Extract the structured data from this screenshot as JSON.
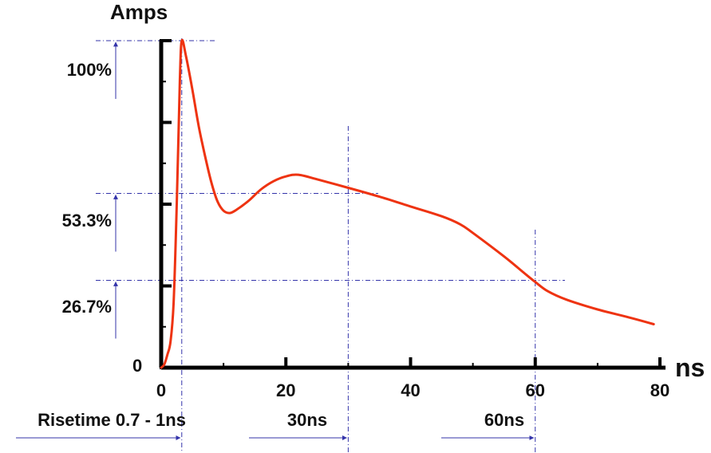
{
  "chart_data": {
    "type": "line",
    "title": "",
    "ylabel": "Amps",
    "xlabel": "ns",
    "xlim": [
      0,
      80
    ],
    "ylim": [
      0,
      100
    ],
    "x_ticks": [
      0,
      20,
      40,
      60,
      80
    ],
    "x_tick_labels": [
      "0",
      "20",
      "40",
      "60",
      "80"
    ],
    "y_ticks": [
      0,
      25,
      50,
      75,
      100
    ],
    "y_zero_label": "0",
    "y_levels": [
      {
        "value": 100,
        "label": "100%"
      },
      {
        "value": 53.3,
        "label": "53.3%"
      },
      {
        "value": 26.7,
        "label": "26.7%"
      }
    ],
    "time_markers": [
      {
        "x": 3.3,
        "label": "Risetime 0.7 - 1ns"
      },
      {
        "x": 30,
        "label": "30ns"
      },
      {
        "x": 60,
        "label": "60ns"
      }
    ],
    "series": [
      {
        "color": "#ee3311",
        "points": [
          [
            0,
            0
          ],
          [
            0.5,
            1
          ],
          [
            1,
            4
          ],
          [
            1.5,
            8
          ],
          [
            2,
            20
          ],
          [
            2.5,
            50
          ],
          [
            3,
            88
          ],
          [
            3.3,
            100
          ],
          [
            4,
            95
          ],
          [
            5,
            85
          ],
          [
            6,
            74
          ],
          [
            7,
            65
          ],
          [
            8,
            57
          ],
          [
            9,
            51
          ],
          [
            10,
            48
          ],
          [
            11,
            47.3
          ],
          [
            12,
            48.2
          ],
          [
            14,
            51
          ],
          [
            16,
            54.5
          ],
          [
            18,
            57
          ],
          [
            20,
            58.5
          ],
          [
            22,
            59
          ],
          [
            25,
            57.6
          ],
          [
            30,
            55
          ],
          [
            35,
            52.3
          ],
          [
            40,
            49.3
          ],
          [
            45,
            46.3
          ],
          [
            48,
            43.8
          ],
          [
            50,
            41.2
          ],
          [
            55,
            34
          ],
          [
            58,
            29.3
          ],
          [
            60,
            26.2
          ],
          [
            62,
            23.4
          ],
          [
            65,
            20.8
          ],
          [
            70,
            17.8
          ],
          [
            75,
            15.4
          ],
          [
            79,
            13.3
          ]
        ]
      }
    ],
    "grid": false
  },
  "colors": {
    "curve": "#ee3311",
    "guide": "#3333aa",
    "axis": "#000000"
  }
}
